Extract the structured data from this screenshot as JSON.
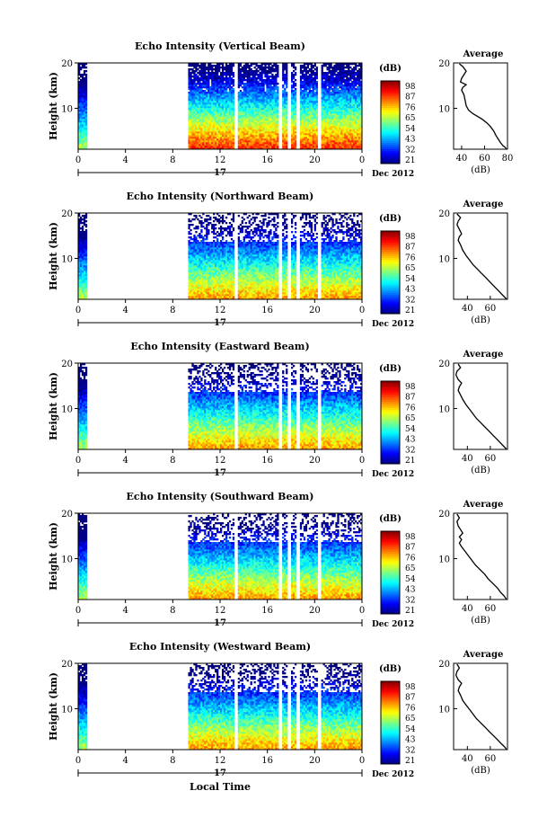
{
  "figure": {
    "xlabel": "Local Time",
    "date_label": "Dec 2012",
    "day_label": "17",
    "cbar_unit": "(dB)",
    "avg_title": "Average",
    "avg_xlabel": "(dB)",
    "ylabel": "Height (km)"
  },
  "chart_data": [
    {
      "type": "heatmap",
      "title": "Echo Intensity (Vertical Beam)",
      "ylabel": "Height (km)",
      "xlabel": "Local Time",
      "x_ticks": [
        "0",
        "4",
        "8",
        "12",
        "16",
        "20",
        "0"
      ],
      "y_ticks": [
        "20",
        "10"
      ],
      "xlim": [
        0,
        24
      ],
      "ylim": [
        1,
        20
      ],
      "colorbar": {
        "label": "(dB)",
        "ticks": [
          "98",
          "87",
          "76",
          "65",
          "54",
          "43",
          "32",
          "21"
        ],
        "range": [
          21,
          98
        ]
      },
      "data_gaps_hours": [
        [
          0.7,
          9.3
        ],
        [
          13.2,
          13.5
        ],
        [
          17.0,
          17.3
        ],
        [
          17.7,
          18.0
        ],
        [
          18.4,
          18.7
        ],
        [
          20.2,
          20.5
        ]
      ],
      "average_profile": {
        "title": "Average",
        "xlabel": "(dB)",
        "x_ticks": [
          "40",
          "60",
          "80"
        ],
        "y_ticks": [
          "20",
          "10"
        ],
        "xlim": [
          33,
          80
        ],
        "points": [
          [
            38,
            19.8
          ],
          [
            41,
            19.2
          ],
          [
            44,
            18.2
          ],
          [
            42,
            17.4
          ],
          [
            40,
            16.6
          ],
          [
            39,
            15.8
          ],
          [
            44,
            15.2
          ],
          [
            41,
            14.6
          ],
          [
            40,
            14.0
          ],
          [
            42,
            13.0
          ],
          [
            43,
            11.8
          ],
          [
            44,
            10.6
          ],
          [
            46,
            9.6
          ],
          [
            50,
            8.8
          ],
          [
            54,
            8.2
          ],
          [
            58,
            7.6
          ],
          [
            62,
            6.8
          ],
          [
            65,
            6.0
          ],
          [
            68,
            5.0
          ],
          [
            70,
            4.0
          ],
          [
            72,
            3.2
          ],
          [
            74,
            2.4
          ],
          [
            76,
            1.8
          ],
          [
            78,
            1.4
          ],
          [
            79,
            1.1
          ]
        ]
      }
    },
    {
      "type": "heatmap",
      "title": "Echo Intensity (Northward Beam)",
      "ylabel": "Height (km)",
      "xlabel": "Local Time",
      "x_ticks": [
        "0",
        "4",
        "8",
        "12",
        "16",
        "20",
        "0"
      ],
      "y_ticks": [
        "20",
        "10"
      ],
      "xlim": [
        0,
        24
      ],
      "ylim": [
        1,
        20
      ],
      "colorbar": {
        "label": "(dB)",
        "ticks": [
          "98",
          "87",
          "76",
          "65",
          "54",
          "43",
          "32",
          "21"
        ],
        "range": [
          21,
          98
        ]
      },
      "data_gaps_hours": [
        [
          0.7,
          9.3
        ],
        [
          13.2,
          13.5
        ],
        [
          17.0,
          17.3
        ],
        [
          17.7,
          18.0
        ],
        [
          18.4,
          18.7
        ],
        [
          20.2,
          20.5
        ]
      ],
      "average_profile": {
        "title": "Average",
        "xlabel": "(dB)",
        "x_ticks": [
          "40",
          "60"
        ],
        "y_ticks": [
          "20",
          "10"
        ],
        "xlim": [
          28,
          75
        ],
        "points": [
          [
            31,
            19.8
          ],
          [
            34,
            19.0
          ],
          [
            32,
            18.2
          ],
          [
            31,
            17.4
          ],
          [
            33,
            16.4
          ],
          [
            35,
            15.4
          ],
          [
            33,
            14.8
          ],
          [
            32,
            14.0
          ],
          [
            34,
            13.0
          ],
          [
            36,
            11.8
          ],
          [
            39,
            10.6
          ],
          [
            42,
            9.6
          ],
          [
            45,
            8.6
          ],
          [
            49,
            7.6
          ],
          [
            52,
            6.8
          ],
          [
            56,
            5.8
          ],
          [
            59,
            5.0
          ],
          [
            62,
            4.2
          ],
          [
            66,
            3.2
          ],
          [
            69,
            2.4
          ],
          [
            72,
            1.6
          ],
          [
            74,
            1.1
          ]
        ]
      }
    },
    {
      "type": "heatmap",
      "title": "Echo Intensity (Eastward Beam)",
      "ylabel": "Height (km)",
      "xlabel": "Local Time",
      "x_ticks": [
        "0",
        "4",
        "8",
        "12",
        "16",
        "20",
        "0"
      ],
      "y_ticks": [
        "20",
        "10"
      ],
      "xlim": [
        0,
        24
      ],
      "ylim": [
        1,
        20
      ],
      "colorbar": {
        "label": "(dB)",
        "ticks": [
          "98",
          "87",
          "76",
          "65",
          "54",
          "43",
          "32",
          "21"
        ],
        "range": [
          21,
          98
        ]
      },
      "data_gaps_hours": [
        [
          0.7,
          9.3
        ],
        [
          13.2,
          13.5
        ],
        [
          17.0,
          17.3
        ],
        [
          17.7,
          18.0
        ],
        [
          18.4,
          18.7
        ],
        [
          20.2,
          20.5
        ]
      ],
      "average_profile": {
        "title": "Average",
        "xlabel": "(dB)",
        "x_ticks": [
          "40",
          "60"
        ],
        "y_ticks": [
          "20",
          "10"
        ],
        "xlim": [
          28,
          75
        ],
        "points": [
          [
            32,
            19.8
          ],
          [
            34,
            19.0
          ],
          [
            31,
            18.2
          ],
          [
            30,
            17.4
          ],
          [
            32,
            16.4
          ],
          [
            35,
            15.6
          ],
          [
            33,
            14.8
          ],
          [
            32,
            14.0
          ],
          [
            34,
            13.0
          ],
          [
            36,
            12.0
          ],
          [
            39,
            10.8
          ],
          [
            42,
            9.8
          ],
          [
            45,
            8.8
          ],
          [
            48,
            7.8
          ],
          [
            52,
            6.8
          ],
          [
            55,
            6.0
          ],
          [
            59,
            5.0
          ],
          [
            62,
            4.2
          ],
          [
            66,
            3.2
          ],
          [
            69,
            2.4
          ],
          [
            72,
            1.6
          ],
          [
            74,
            1.1
          ]
        ]
      }
    },
    {
      "type": "heatmap",
      "title": "Echo Intensity (Southward Beam)",
      "ylabel": "Height (km)",
      "xlabel": "Local Time",
      "x_ticks": [
        "0",
        "4",
        "8",
        "12",
        "16",
        "20",
        "0"
      ],
      "y_ticks": [
        "20",
        "10"
      ],
      "xlim": [
        0,
        24
      ],
      "ylim": [
        1,
        20
      ],
      "colorbar": {
        "label": "(dB)",
        "ticks": [
          "98",
          "87",
          "76",
          "65",
          "54",
          "43",
          "32",
          "21"
        ],
        "range": [
          21,
          98
        ]
      },
      "data_gaps_hours": [
        [
          0.7,
          9.3
        ],
        [
          13.2,
          13.5
        ],
        [
          17.0,
          17.3
        ],
        [
          17.7,
          18.0
        ],
        [
          18.4,
          18.7
        ],
        [
          20.2,
          20.5
        ]
      ],
      "average_profile": {
        "title": "Average",
        "xlabel": "(dB)",
        "x_ticks": [
          "40",
          "60"
        ],
        "y_ticks": [
          "20",
          "10"
        ],
        "xlim": [
          28,
          75
        ],
        "points": [
          [
            31,
            19.8
          ],
          [
            33,
            19.0
          ],
          [
            31,
            18.2
          ],
          [
            32,
            17.2
          ],
          [
            34,
            16.4
          ],
          [
            36,
            15.6
          ],
          [
            33,
            14.8
          ],
          [
            35,
            14.2
          ],
          [
            33,
            13.4
          ],
          [
            35,
            12.6
          ],
          [
            38,
            11.6
          ],
          [
            41,
            10.6
          ],
          [
            44,
            9.6
          ],
          [
            47,
            8.6
          ],
          [
            51,
            7.6
          ],
          [
            55,
            6.6
          ],
          [
            58,
            5.6
          ],
          [
            62,
            4.6
          ],
          [
            66,
            3.6
          ],
          [
            69,
            2.6
          ],
          [
            72,
            1.8
          ],
          [
            74,
            1.1
          ]
        ]
      }
    },
    {
      "type": "heatmap",
      "title": "Echo Intensity (Westward Beam)",
      "ylabel": "Height (km)",
      "xlabel": "Local Time",
      "x_ticks": [
        "0",
        "4",
        "8",
        "12",
        "16",
        "20",
        "0"
      ],
      "y_ticks": [
        "20",
        "10"
      ],
      "xlim": [
        0,
        24
      ],
      "ylim": [
        1,
        20
      ],
      "colorbar": {
        "label": "(dB)",
        "ticks": [
          "98",
          "87",
          "76",
          "65",
          "54",
          "43",
          "32",
          "21"
        ],
        "range": [
          21,
          98
        ]
      },
      "data_gaps_hours": [
        [
          0.7,
          9.3
        ],
        [
          13.2,
          13.5
        ],
        [
          17.0,
          17.3
        ],
        [
          17.7,
          18.0
        ],
        [
          18.4,
          18.7
        ],
        [
          20.2,
          20.5
        ]
      ],
      "average_profile": {
        "title": "Average",
        "xlabel": "(dB)",
        "x_ticks": [
          "40",
          "60"
        ],
        "y_ticks": [
          "20",
          "10"
        ],
        "xlim": [
          28,
          75
        ],
        "points": [
          [
            31,
            19.8
          ],
          [
            33,
            19.0
          ],
          [
            31,
            18.2
          ],
          [
            30,
            17.4
          ],
          [
            32,
            16.4
          ],
          [
            35,
            15.6
          ],
          [
            33,
            14.8
          ],
          [
            32,
            14.0
          ],
          [
            34,
            13.0
          ],
          [
            36,
            11.8
          ],
          [
            39,
            10.8
          ],
          [
            42,
            9.8
          ],
          [
            45,
            8.8
          ],
          [
            48,
            7.8
          ],
          [
            52,
            6.8
          ],
          [
            56,
            5.8
          ],
          [
            59,
            5.0
          ],
          [
            63,
            4.0
          ],
          [
            67,
            3.0
          ],
          [
            70,
            2.2
          ],
          [
            73,
            1.5
          ],
          [
            74,
            1.1
          ]
        ]
      }
    }
  ]
}
